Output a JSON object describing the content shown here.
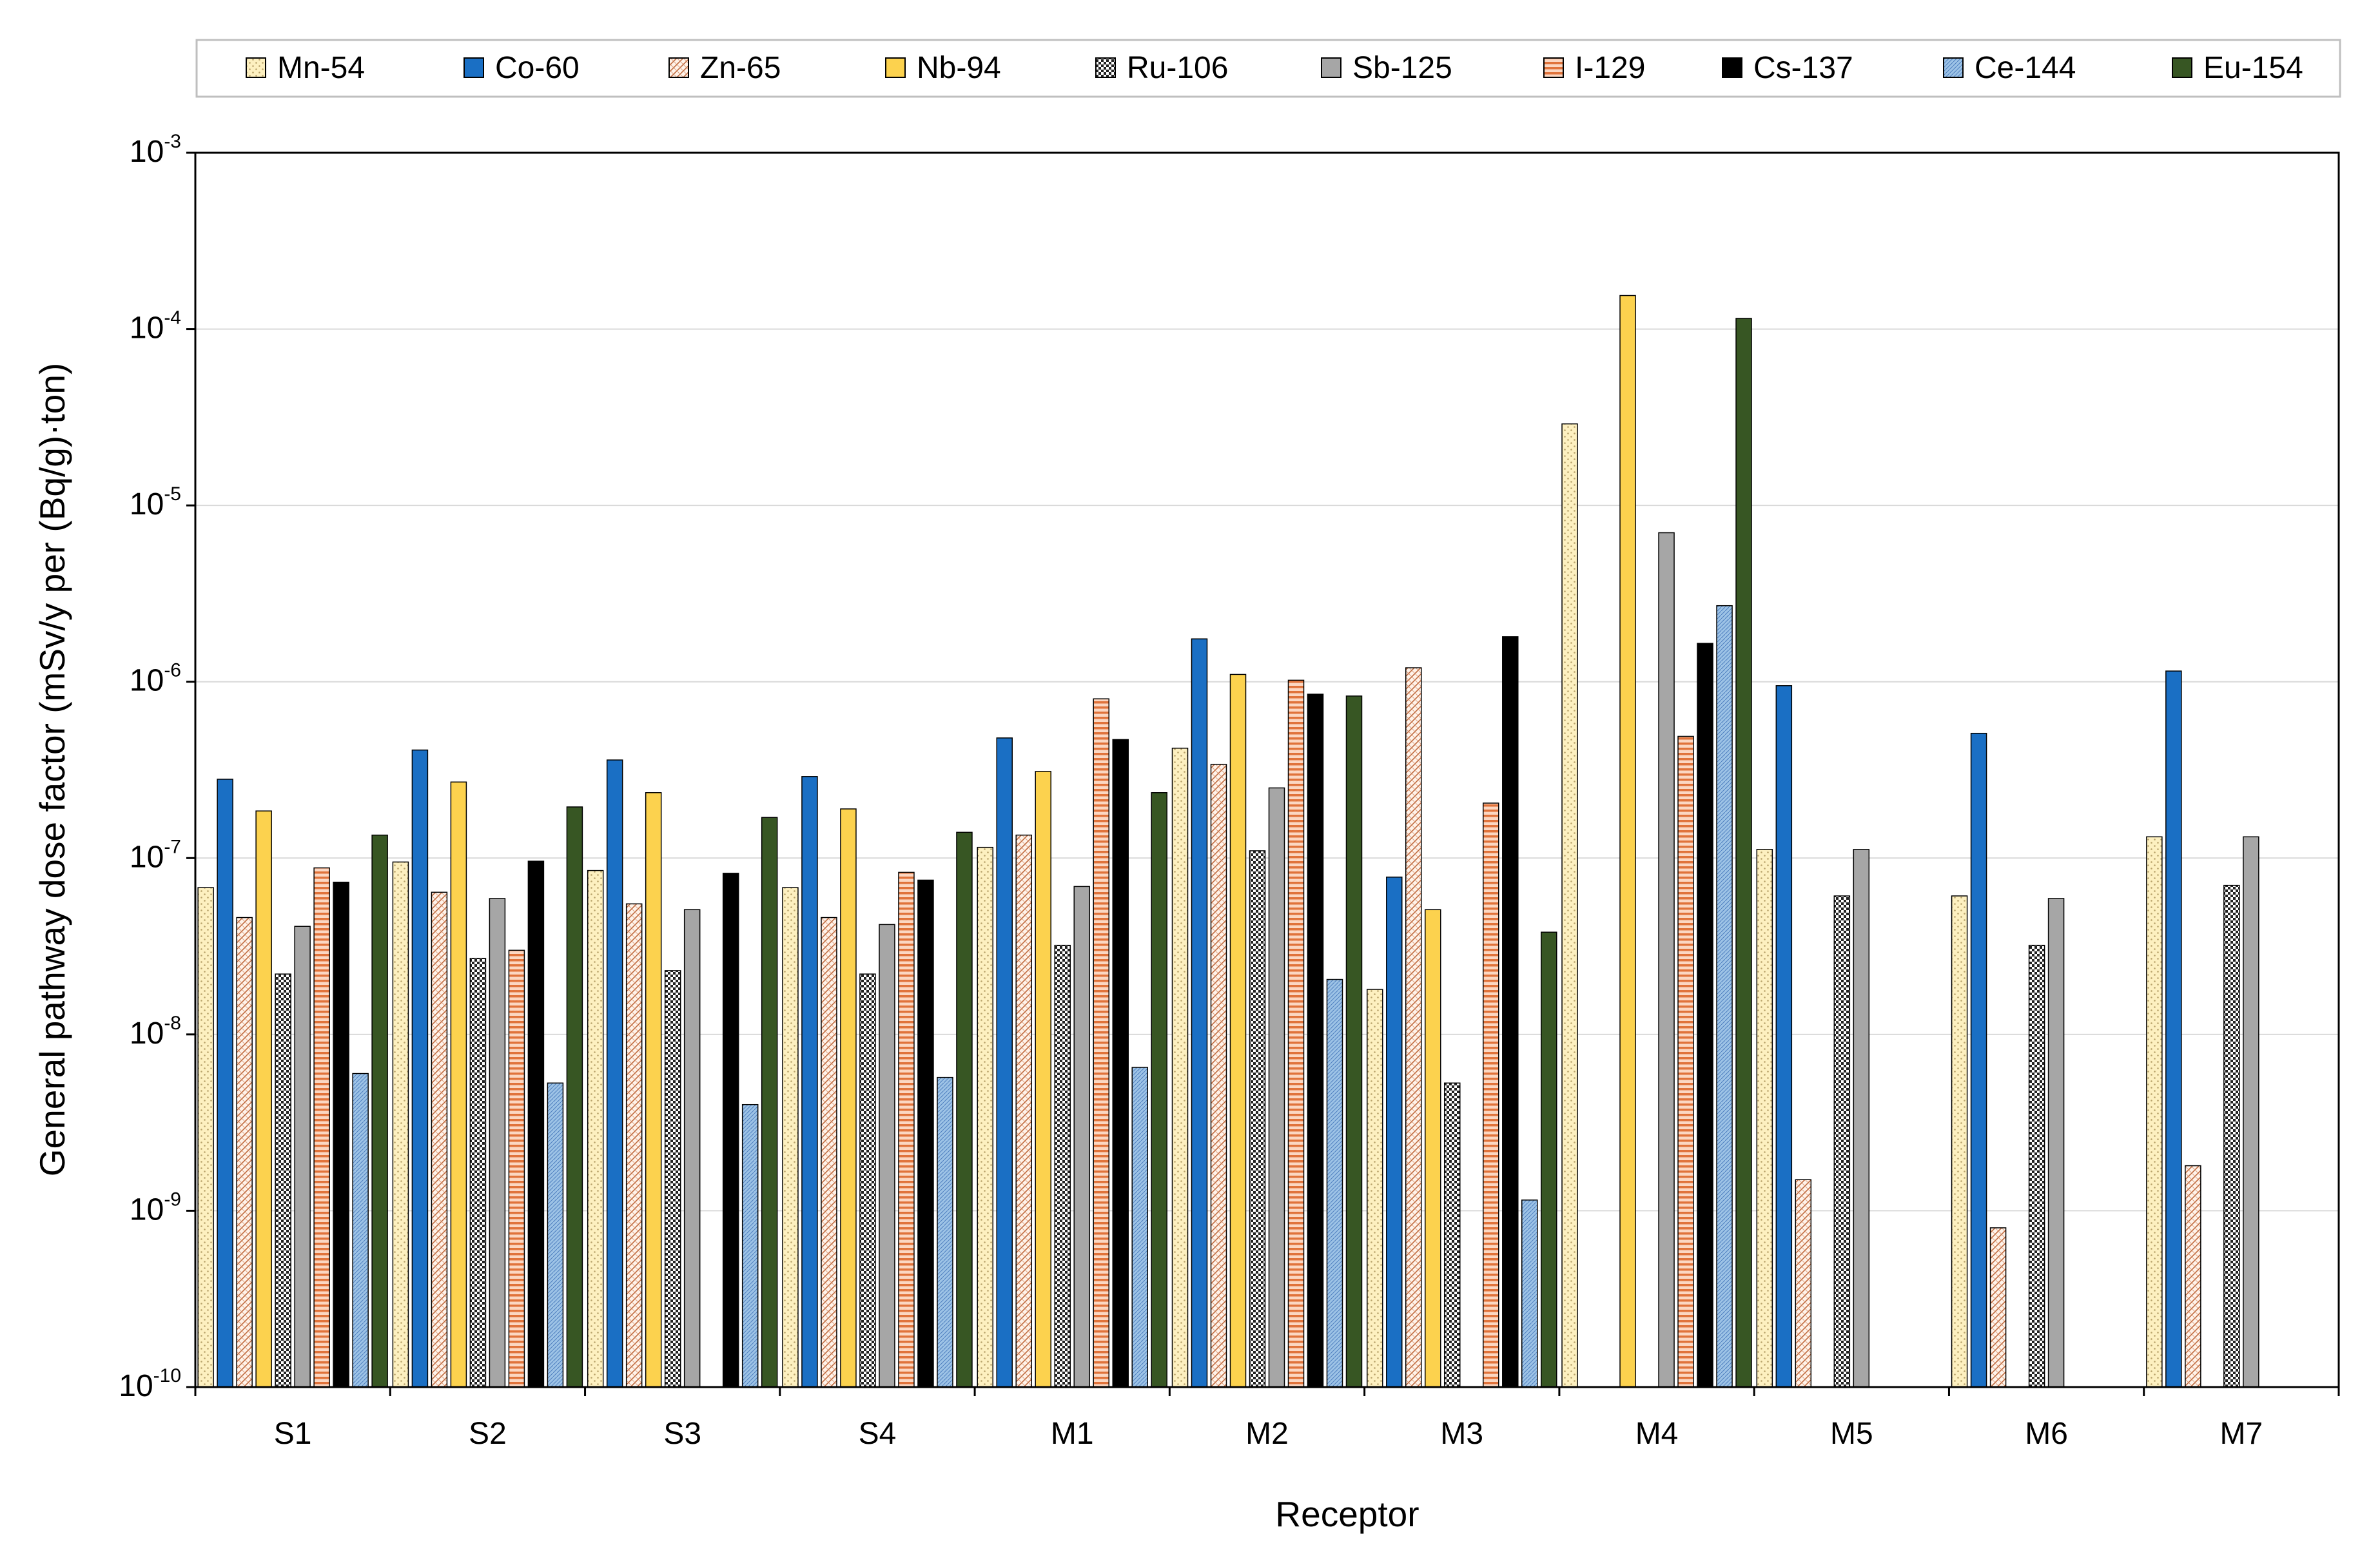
{
  "chart_data": {
    "type": "bar",
    "title": "",
    "xlabel": "Receptor",
    "ylabel": "General pathway dose factor (mSv/y per (Bq/g)·ton)",
    "yscale": "log",
    "ylim": [
      1e-10,
      0.001
    ],
    "yticks": [
      {
        "base": "10",
        "exp": "-10",
        "value": 1e-10
      },
      {
        "base": "10",
        "exp": "-9",
        "value": 1e-09
      },
      {
        "base": "10",
        "exp": "-8",
        "value": 1e-08
      },
      {
        "base": "10",
        "exp": "-7",
        "value": 1e-07
      },
      {
        "base": "10",
        "exp": "-6",
        "value": 1e-06
      },
      {
        "base": "10",
        "exp": "-5",
        "value": 1e-05
      },
      {
        "base": "10",
        "exp": "-4",
        "value": 0.0001
      },
      {
        "base": "10",
        "exp": "-3",
        "value": 0.001
      }
    ],
    "grid": true,
    "legend_position": "top",
    "categories": [
      "S1",
      "S2",
      "S3",
      "S4",
      "M1",
      "M2",
      "M3",
      "M4",
      "M5",
      "M6",
      "M7"
    ],
    "series": [
      {
        "name": "Mn-54",
        "color": "#fdf0c0",
        "pattern": "dots",
        "values": [
          6.8e-08,
          9.5e-08,
          8.5e-08,
          6.8e-08,
          1.15e-07,
          4.2e-07,
          1.8e-08,
          2.9e-05,
          1.12e-07,
          6.1e-08,
          1.32e-07
        ]
      },
      {
        "name": "Co-60",
        "color": "#1a6fc4",
        "pattern": "solid",
        "values": [
          2.8e-07,
          4.1e-07,
          3.6e-07,
          2.9e-07,
          4.8e-07,
          1.75e-06,
          7.8e-08,
          null,
          9.5e-07,
          5.1e-07,
          1.15e-06
        ]
      },
      {
        "name": "Zn-65",
        "color": "#e8a07a",
        "pattern": "crosshatch",
        "values": [
          4.6e-08,
          6.4e-08,
          5.5e-08,
          4.6e-08,
          1.35e-07,
          3.4e-07,
          1.2e-06,
          null,
          1.5e-09,
          8e-10,
          1.8e-09
        ]
      },
      {
        "name": "Nb-94",
        "color": "#fcd24e",
        "pattern": "solid",
        "values": [
          1.85e-07,
          2.7e-07,
          2.35e-07,
          1.9e-07,
          3.1e-07,
          1.1e-06,
          5.1e-08,
          0.000155,
          null,
          null,
          null
        ]
      },
      {
        "name": "Ru-106",
        "color": "#222222",
        "pattern": "checker",
        "values": [
          2.2e-08,
          2.7e-08,
          2.3e-08,
          2.2e-08,
          3.2e-08,
          1.1e-07,
          5.3e-09,
          null,
          6.1e-08,
          3.2e-08,
          7e-08
        ]
      },
      {
        "name": "Sb-125",
        "color": "#a6a6a6",
        "pattern": "solid",
        "values": [
          4.1e-08,
          5.9e-08,
          5.1e-08,
          4.2e-08,
          6.9e-08,
          2.5e-07,
          null,
          7e-06,
          1.12e-07,
          5.9e-08,
          1.32e-07
        ]
      },
      {
        "name": "I-129",
        "color": "#f4a582",
        "pattern": "hstripes",
        "values": [
          8.8e-08,
          3e-08,
          null,
          8.3e-08,
          8e-07,
          1.02e-06,
          2.05e-07,
          4.9e-07,
          null,
          null,
          null
        ]
      },
      {
        "name": "Cs-137",
        "color": "#000000",
        "pattern": "solid",
        "values": [
          7.3e-08,
          9.6e-08,
          8.2e-08,
          7.5e-08,
          4.7e-07,
          8.5e-07,
          1.8e-06,
          1.65e-06,
          null,
          null,
          null
        ]
      },
      {
        "name": "Ce-144",
        "color": "#9dc3e6",
        "pattern": "fine",
        "values": [
          6e-09,
          5.3e-09,
          4e-09,
          5.7e-09,
          6.5e-09,
          2.05e-08,
          1.15e-09,
          2.7e-06,
          null,
          null,
          null
        ]
      },
      {
        "name": "Eu-154",
        "color": "#375623",
        "pattern": "solid",
        "values": [
          1.35e-07,
          1.95e-07,
          1.7e-07,
          1.4e-07,
          2.35e-07,
          8.3e-07,
          3.8e-08,
          0.000115,
          null,
          null,
          null
        ]
      }
    ]
  }
}
